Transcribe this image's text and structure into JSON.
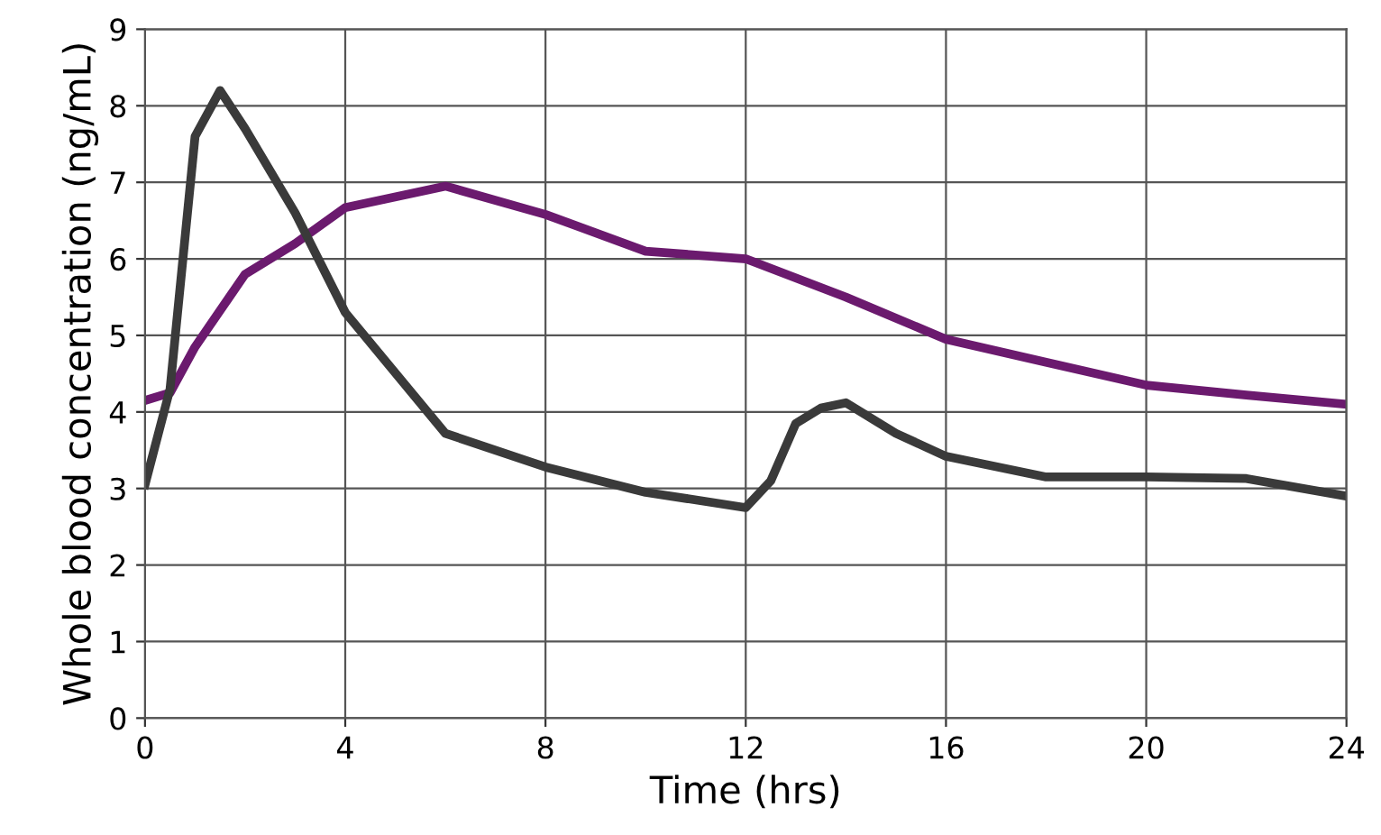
{
  "chart_data": {
    "type": "line",
    "xlabel": "Time (hrs)",
    "ylabel": "Whole blood concentration (ng/mL)",
    "xlim": [
      0,
      24
    ],
    "xticks": [
      0,
      4,
      8,
      12,
      16,
      20,
      24
    ],
    "ylim": [
      0,
      9
    ],
    "yticks": [
      0,
      1,
      2,
      3,
      4,
      5,
      6,
      7,
      8,
      9
    ],
    "grid": true,
    "marker": "none",
    "line_style": "solid",
    "series": [
      {
        "color": "#6b1a6e",
        "x": [
          0,
          0.5,
          1,
          2,
          3,
          4,
          6,
          8,
          10,
          12,
          14,
          16,
          18,
          20,
          22,
          24
        ],
        "values": [
          4.15,
          4.25,
          4.85,
          5.8,
          6.2,
          6.67,
          6.95,
          6.58,
          6.1,
          6.0,
          5.5,
          4.95,
          4.65,
          4.35,
          4.22,
          4.1
        ]
      },
      {
        "color": "#3a3a3a",
        "x": [
          0,
          0.5,
          1,
          1.5,
          2,
          3,
          4,
          6,
          8,
          10,
          12,
          12.5,
          13,
          13.5,
          14,
          15,
          16,
          18,
          20,
          22,
          24
        ],
        "values": [
          3.05,
          4.3,
          7.6,
          8.2,
          7.7,
          6.6,
          5.3,
          3.72,
          3.28,
          2.95,
          2.75,
          3.1,
          3.85,
          4.05,
          4.12,
          3.72,
          3.42,
          3.15,
          3.15,
          3.13,
          2.9
        ]
      }
    ]
  }
}
